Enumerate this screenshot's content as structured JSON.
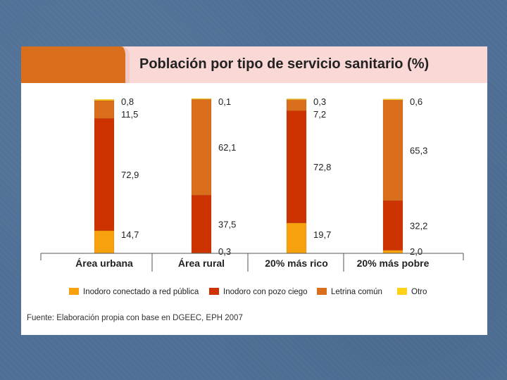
{
  "title": "Población por tipo de servicio sanitario (%)",
  "source": "Fuente: Elaboración propia con base en DGEEC, EPH 2007",
  "colors": {
    "red_publica": "#f7a10f",
    "pozo_ciego": "#cc3300",
    "letrina": "#d96f1c",
    "otro": "#ffd21a"
  },
  "chart_data": {
    "type": "bar",
    "stacked": true,
    "title": "Población por tipo de servicio sanitario (%)",
    "categories": [
      "Área urbana",
      "Área rural",
      "20% más rico",
      "20% más pobre"
    ],
    "series": [
      {
        "name": "Inodoro conectado a red pública",
        "key": "red_publica",
        "values": [
          14.7,
          0.3,
          19.7,
          2.0
        ],
        "labels": [
          "14,7",
          "0,3",
          "19,7",
          "2,0"
        ]
      },
      {
        "name": "Inodoro con pozo ciego",
        "key": "pozo_ciego",
        "values": [
          72.9,
          37.5,
          72.8,
          32.2
        ],
        "labels": [
          "72,9",
          "37,5",
          "72,8",
          "32,2"
        ]
      },
      {
        "name": "Letrina común",
        "key": "letrina",
        "values": [
          11.5,
          62.1,
          7.2,
          65.3
        ],
        "labels": [
          "11,5",
          "62,1",
          "7,2",
          "65,3"
        ]
      },
      {
        "name": "Otro",
        "key": "otro",
        "values": [
          0.8,
          0.1,
          0.3,
          0.6
        ],
        "labels": [
          "0,8",
          "0,1",
          "0,3",
          "0,6"
        ]
      }
    ],
    "ylim": [
      0,
      100
    ],
    "xlabel": "",
    "ylabel": "",
    "legend": "bottom",
    "grid": false
  }
}
